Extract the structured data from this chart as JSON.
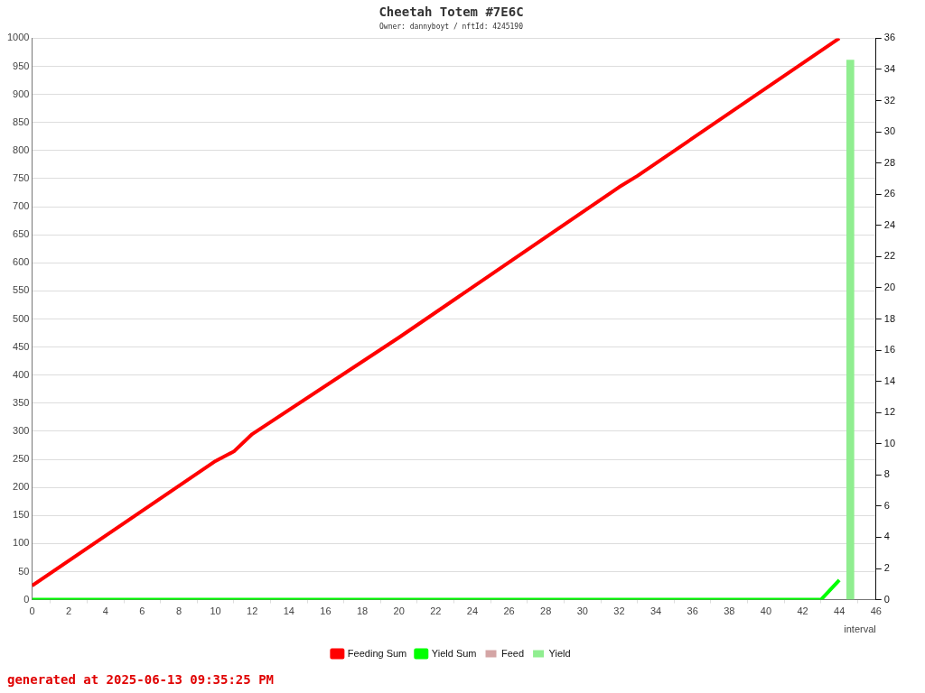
{
  "chart_data": {
    "type": "line",
    "title": "Cheetah Totem #7E6C",
    "subtitle": "Owner: dannyboyt / nftId: 4245190",
    "xlabel": "interval",
    "xlim": [
      0,
      46
    ],
    "xticks": [
      0,
      2,
      4,
      6,
      8,
      10,
      12,
      14,
      16,
      18,
      20,
      22,
      24,
      26,
      28,
      30,
      32,
      34,
      36,
      38,
      40,
      42,
      44,
      46
    ],
    "ylim": [
      0,
      1000
    ],
    "yticks": [
      0,
      50,
      100,
      150,
      200,
      250,
      300,
      350,
      400,
      450,
      500,
      550,
      600,
      650,
      700,
      750,
      800,
      850,
      900,
      950,
      1000
    ],
    "y2lim": [
      0,
      36
    ],
    "y2ticks": [
      0,
      2,
      4,
      6,
      8,
      10,
      12,
      14,
      16,
      18,
      20,
      22,
      24,
      26,
      28,
      30,
      32,
      34,
      36
    ],
    "grid": "y",
    "legend": "bottom",
    "marker": "none",
    "line_style": "solid",
    "series": [
      {
        "name": "Feeding Sum",
        "color": "#ff0000",
        "x": [
          0,
          10,
          11,
          12,
          20,
          32,
          33,
          44
        ],
        "values": [
          25,
          247,
          264,
          295,
          467,
          735,
          755,
          1000
        ]
      },
      {
        "name": "Yield Sum",
        "color": "#00ff00",
        "x": [
          0,
          43,
          44
        ],
        "values": [
          0,
          0,
          35
        ]
      },
      {
        "name": "Feed",
        "type": "bar",
        "axis": "y2",
        "color": "#d4a5a5"
      },
      {
        "name": "Yield",
        "type": "bar",
        "axis": "y2",
        "color": "#90ee90",
        "x": [
          44.6
        ],
        "values": [
          34.6
        ]
      }
    ],
    "annotations": [
      "generated at 2025-06-13 09:35:25 PM"
    ]
  }
}
